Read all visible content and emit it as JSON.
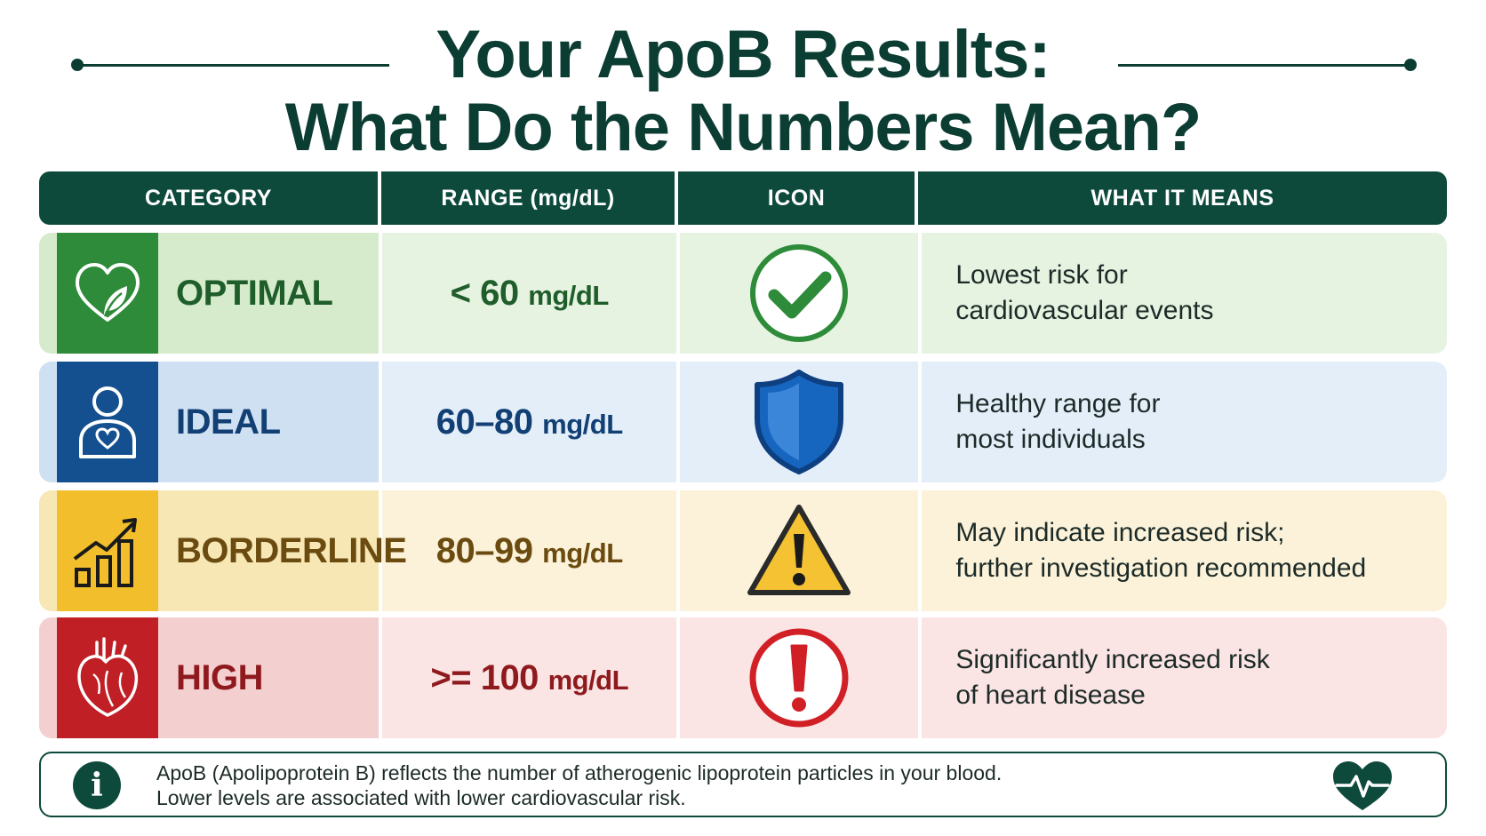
{
  "title": {
    "line1": "Your ApoB Results:",
    "line2": "What Do the Numbers Mean?"
  },
  "table": {
    "headers": [
      "CATEGORY",
      "RANGE (mg/dL)",
      "ICON",
      "WHAT IT MEANS"
    ],
    "rows": [
      {
        "category": "OPTIMAL",
        "range_value": "< 60",
        "range_unit": "mg/dL",
        "meaning_line1": "Lowest risk for",
        "meaning_line2": "cardiovascular events",
        "category_icon": "heart-leaf-icon",
        "status_icon": "checkmark-circle-icon",
        "color": "#2e8b3a"
      },
      {
        "category": "IDEAL",
        "range_value": "60–80",
        "range_unit": "mg/dL",
        "meaning_line1": "Healthy range for",
        "meaning_line2": "most individuals",
        "category_icon": "person-heart-icon",
        "status_icon": "shield-icon",
        "color": "#14508f"
      },
      {
        "category": "BORDERLINE",
        "range_value": "80–99",
        "range_unit": "mg/dL",
        "meaning_line1": "May indicate increased risk;",
        "meaning_line2": "further investigation recommended",
        "category_icon": "rising-bar-chart-icon",
        "status_icon": "warning-triangle-icon",
        "color": "#f2be2c"
      },
      {
        "category": "HIGH",
        "range_value": ">= 100",
        "range_unit": "mg/dL",
        "meaning_line1": "Significantly increased risk",
        "meaning_line2": "of heart disease",
        "category_icon": "anatomical-heart-icon",
        "status_icon": "exclamation-circle-icon",
        "color": "#bf1f25"
      }
    ]
  },
  "info": {
    "icon": "info-icon",
    "line1": "ApoB (Apolipoprotein B) reflects the number of atherogenic lipoprotein particles in your blood.",
    "line2": "Lower levels are associated with lower cardiovascular risk.",
    "badge_icon": "heart-pulse-icon"
  },
  "colors": {
    "primary": "#0d4a3c"
  }
}
